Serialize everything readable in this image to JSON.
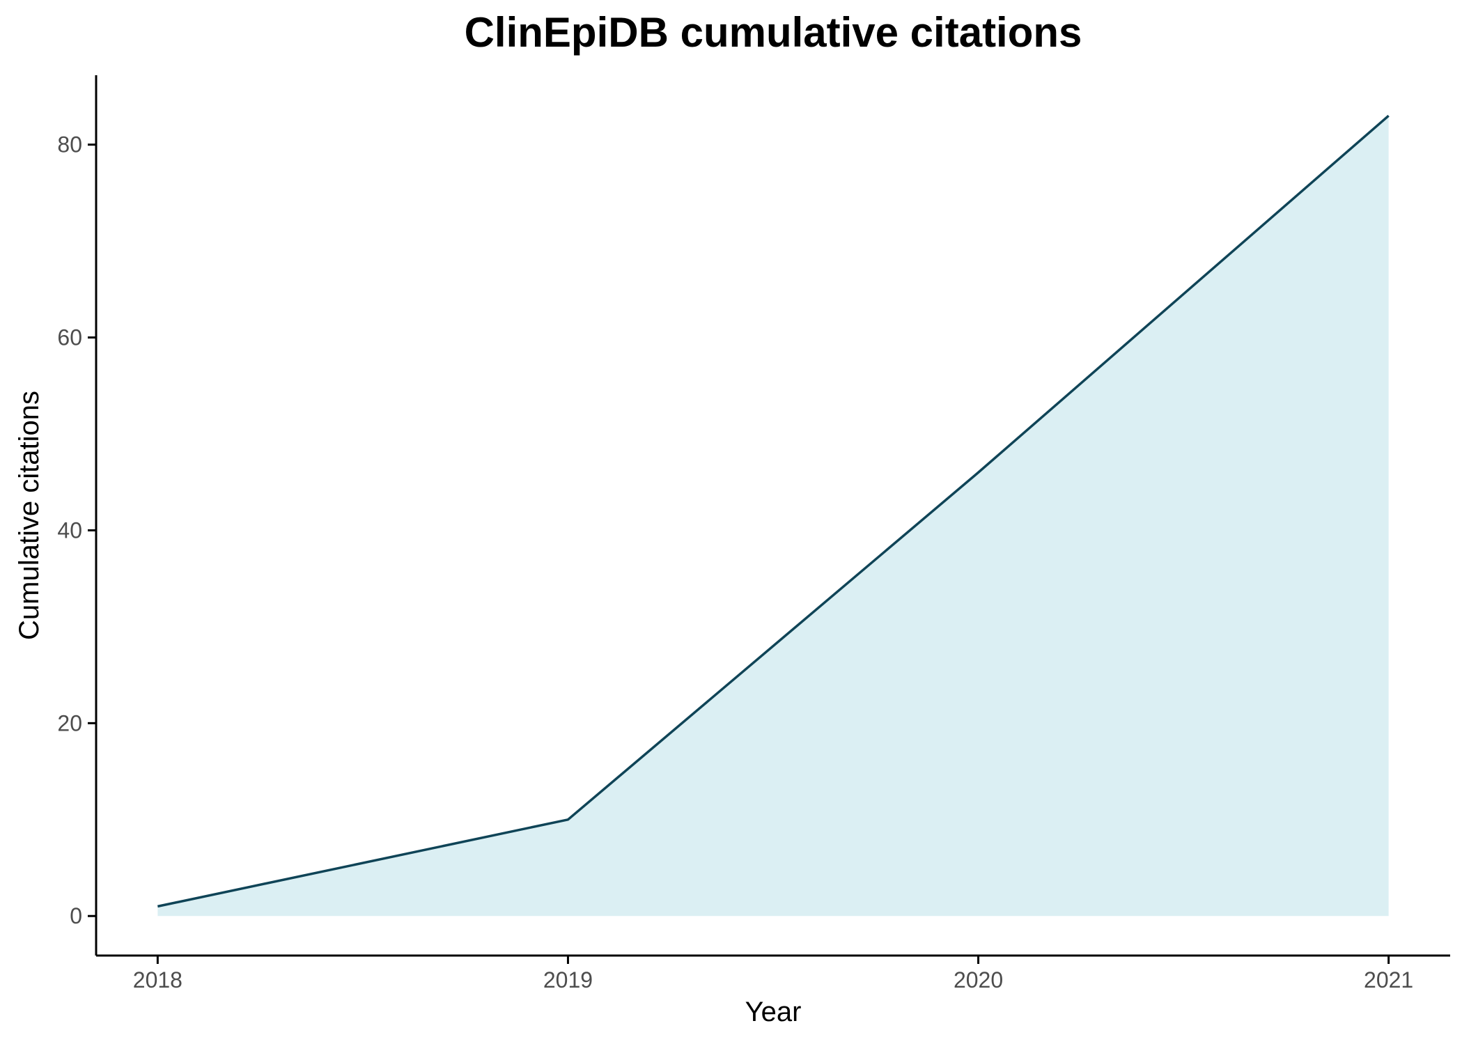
{
  "chart_data": {
    "type": "area",
    "title": "ClinEpiDB cumulative citations",
    "xlabel": "Year",
    "ylabel": "Cumulative citations",
    "x": [
      2018,
      2019,
      2020,
      2021
    ],
    "series": [
      {
        "values": [
          1,
          10,
          46,
          83
        ]
      }
    ],
    "xlim": [
      2017.85,
      2021.15
    ],
    "ylim": [
      -4.1,
      87.2
    ],
    "x_ticks": [
      2018,
      2019,
      2020,
      2021
    ],
    "y_ticks": [
      0,
      20,
      40,
      60,
      80
    ],
    "grid": false,
    "legend": "none",
    "colors": {
      "line": "#0f4457",
      "fill": "#dbeff3"
    }
  }
}
